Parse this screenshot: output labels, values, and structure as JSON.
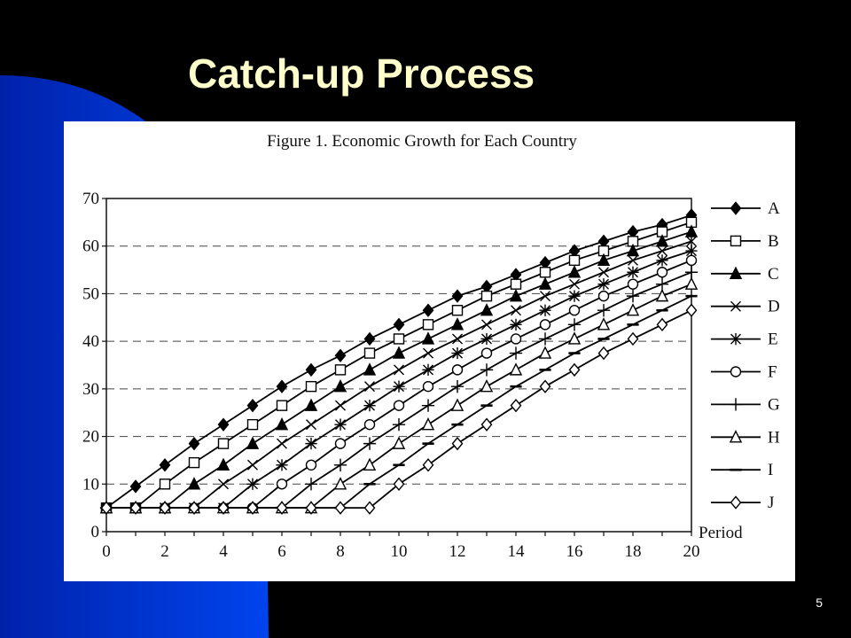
{
  "slide": {
    "title": "Catch-up Process",
    "number": "5",
    "colors": {
      "background": "#000000",
      "accent": "#0033CC",
      "title": "#FFFFCC"
    }
  },
  "chart_data": {
    "type": "line",
    "title": "Figure 1. Economic Growth for Each Country",
    "xlabel": "Period",
    "ylabel": "",
    "xlim": [
      0,
      20
    ],
    "ylim": [
      0,
      70
    ],
    "xticks": [
      0,
      2,
      4,
      6,
      8,
      10,
      12,
      14,
      16,
      18,
      20
    ],
    "yticks": [
      0,
      10,
      20,
      30,
      40,
      50,
      60,
      70
    ],
    "grid": "horizontal dashed",
    "legend_position": "right",
    "x": [
      0,
      1,
      2,
      3,
      4,
      5,
      6,
      7,
      8,
      9,
      10,
      11,
      12,
      13,
      14,
      15,
      16,
      17,
      18,
      19,
      20
    ],
    "series": [
      {
        "name": "A",
        "marker": "diamond-filled",
        "values": [
          5,
          9.5,
          14,
          18.5,
          22.5,
          26.5,
          30.5,
          34,
          37,
          40.5,
          43.5,
          46.5,
          49.5,
          51.5,
          54,
          56.5,
          59,
          61,
          63,
          64.5,
          66.5
        ]
      },
      {
        "name": "B",
        "marker": "square-open",
        "values": [
          5,
          5,
          10,
          14.5,
          18.5,
          22.5,
          26.5,
          30.5,
          34,
          37.5,
          40.5,
          43.5,
          46.5,
          49.5,
          52,
          54.5,
          57,
          59,
          61,
          63,
          65
        ]
      },
      {
        "name": "C",
        "marker": "triangle-filled",
        "values": [
          5,
          5,
          5,
          10,
          14,
          18.5,
          22.5,
          26.5,
          30.5,
          34,
          37.5,
          40.5,
          43.5,
          46.5,
          49.5,
          52,
          54.5,
          57,
          59,
          61,
          63
        ]
      },
      {
        "name": "D",
        "marker": "x",
        "values": [
          5,
          5,
          5,
          5,
          10,
          14,
          18.5,
          22.5,
          26.5,
          30.5,
          34,
          37.5,
          40.5,
          43.5,
          46.5,
          49.5,
          52,
          54.5,
          57,
          59,
          61
        ]
      },
      {
        "name": "E",
        "marker": "asterisk",
        "values": [
          5,
          5,
          5,
          5,
          5,
          10,
          14,
          18.5,
          22.5,
          26.5,
          30.5,
          34,
          37.5,
          40.5,
          43.5,
          46.5,
          49.5,
          52,
          54.5,
          57,
          59
        ]
      },
      {
        "name": "F",
        "marker": "circle-open",
        "values": [
          5,
          5,
          5,
          5,
          5,
          5,
          10,
          14,
          18.5,
          22.5,
          26.5,
          30.5,
          34,
          37.5,
          40.5,
          43.5,
          46.5,
          49.5,
          52,
          54.5,
          57
        ]
      },
      {
        "name": "G",
        "marker": "plus",
        "values": [
          5,
          5,
          5,
          5,
          5,
          5,
          5,
          10,
          14,
          18.5,
          22.5,
          26.5,
          30.5,
          34,
          37.5,
          40.5,
          43.5,
          46.5,
          49.5,
          52,
          54.5
        ]
      },
      {
        "name": "H",
        "marker": "triangle-open",
        "values": [
          5,
          5,
          5,
          5,
          5,
          5,
          5,
          5,
          10,
          14,
          18.5,
          22.5,
          26.5,
          30.5,
          34,
          37.5,
          40.5,
          43.5,
          46.5,
          49.5,
          52
        ]
      },
      {
        "name": "I",
        "marker": "dash",
        "values": [
          5,
          5,
          5,
          5,
          5,
          5,
          5,
          5,
          5,
          10,
          14,
          18.5,
          22.5,
          26.5,
          30.5,
          34,
          37.5,
          40.5,
          43.5,
          46.5,
          49.5
        ]
      },
      {
        "name": "J",
        "marker": "diamond-open",
        "values": [
          5,
          5,
          5,
          5,
          5,
          5,
          5,
          5,
          5,
          5,
          10,
          14,
          18.5,
          22.5,
          26.5,
          30.5,
          34,
          37.5,
          40.5,
          43.5,
          46.5
        ]
      }
    ]
  }
}
